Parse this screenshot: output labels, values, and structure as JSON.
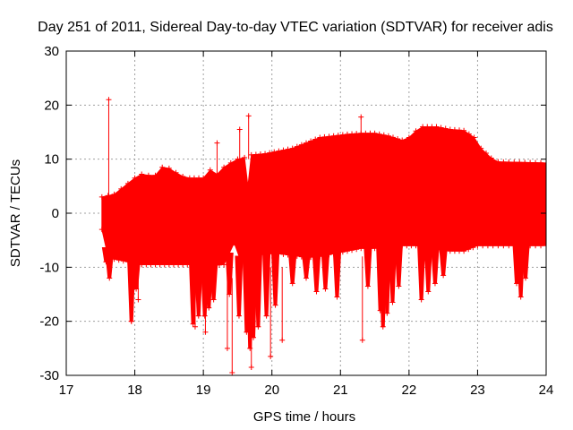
{
  "chart_data": {
    "type": "scatter",
    "title": "Day 251 of 2011, Sidereal Day-to-day VTEC variation (SDTVAR) for receiver adis",
    "xlabel": "GPS time / hours",
    "ylabel": "SDTVAR / TECUs",
    "xlim": [
      17,
      24
    ],
    "ylim": [
      -30,
      30
    ],
    "xticks": [
      "17",
      "18",
      "19",
      "20",
      "21",
      "22",
      "23",
      "24"
    ],
    "yticks": [
      "-30",
      "-20",
      "-10",
      "0",
      "10",
      "20",
      "30"
    ],
    "grid": true,
    "series_color": "#ff0000",
    "series": [
      {
        "name": "SDTVAR",
        "band_upper": [
          [
            17.52,
            3
          ],
          [
            17.7,
            3.5
          ],
          [
            17.8,
            4.5
          ],
          [
            17.9,
            5.5
          ],
          [
            18.0,
            6.5
          ],
          [
            18.1,
            7.2
          ],
          [
            18.2,
            7.0
          ],
          [
            18.3,
            7.0
          ],
          [
            18.4,
            8.5
          ],
          [
            18.5,
            8.3
          ],
          [
            18.6,
            7.5
          ],
          [
            18.7,
            6.8
          ],
          [
            18.8,
            6.5
          ],
          [
            19.0,
            6.5
          ],
          [
            19.1,
            8.0
          ],
          [
            19.2,
            7.2
          ],
          [
            19.3,
            8.5
          ],
          [
            19.4,
            9.3
          ],
          [
            19.5,
            10.0
          ],
          [
            19.6,
            10.3
          ],
          [
            19.65,
            5.0
          ],
          [
            19.7,
            10.8
          ],
          [
            19.9,
            11.0
          ],
          [
            20.1,
            11.5
          ],
          [
            20.3,
            12.0
          ],
          [
            20.5,
            13.0
          ],
          [
            20.7,
            14.0
          ],
          [
            20.9,
            14.3
          ],
          [
            21.1,
            14.6
          ],
          [
            21.3,
            14.8
          ],
          [
            21.5,
            14.8
          ],
          [
            21.7,
            14.3
          ],
          [
            21.9,
            13.5
          ],
          [
            22.0,
            14.0
          ],
          [
            22.1,
            15.2
          ],
          [
            22.2,
            16.0
          ],
          [
            22.4,
            16.0
          ],
          [
            22.6,
            15.5
          ],
          [
            22.8,
            15.3
          ],
          [
            22.95,
            14.0
          ],
          [
            23.05,
            12.0
          ],
          [
            23.2,
            10.2
          ],
          [
            23.3,
            9.5
          ],
          [
            24.0,
            9.3
          ]
        ],
        "band_lower": [
          [
            17.52,
            -3
          ],
          [
            17.6,
            -7.5
          ],
          [
            17.7,
            -8.5
          ],
          [
            17.9,
            -9.0
          ],
          [
            18.1,
            -9.5
          ],
          [
            18.3,
            -9.5
          ],
          [
            18.5,
            -9.5
          ],
          [
            18.7,
            -9.5
          ],
          [
            18.9,
            -9.5
          ],
          [
            19.1,
            -9.7
          ],
          [
            19.3,
            -9.5
          ],
          [
            19.45,
            -5.5
          ],
          [
            19.55,
            -9.0
          ],
          [
            19.7,
            -8.0
          ],
          [
            19.9,
            -7.5
          ],
          [
            20.1,
            -7.5
          ],
          [
            20.3,
            -7.8
          ],
          [
            20.5,
            -8.2
          ],
          [
            20.7,
            -8.0
          ],
          [
            20.9,
            -7.5
          ],
          [
            21.1,
            -7.0
          ],
          [
            21.3,
            -6.5
          ],
          [
            21.5,
            -6.5
          ],
          [
            21.7,
            -6.0
          ],
          [
            21.9,
            -6.0
          ],
          [
            22.1,
            -6.0
          ],
          [
            22.3,
            -6.5
          ],
          [
            22.6,
            -7.0
          ],
          [
            22.8,
            -7.0
          ],
          [
            23.0,
            -6.0
          ],
          [
            23.3,
            -6.0
          ],
          [
            24.0,
            -6.0
          ]
        ],
        "low_dips": [
          [
            17.58,
            -9.0
          ],
          [
            17.63,
            -12.0
          ],
          [
            17.95,
            -20.0
          ],
          [
            18.02,
            -14.0
          ],
          [
            18.85,
            -20.5
          ],
          [
            18.93,
            -19.0
          ],
          [
            19.02,
            -19.0
          ],
          [
            19.08,
            -17.5
          ],
          [
            19.15,
            -16.0
          ],
          [
            19.38,
            -15.0
          ],
          [
            19.52,
            -19.0
          ],
          [
            19.63,
            -22.0
          ],
          [
            19.68,
            -25.0
          ],
          [
            19.73,
            -23.0
          ],
          [
            19.8,
            -21.0
          ],
          [
            19.92,
            -19.0
          ],
          [
            20.05,
            -17.0
          ],
          [
            20.3,
            -13.0
          ],
          [
            20.5,
            -12.0
          ],
          [
            20.65,
            -14.5
          ],
          [
            20.78,
            -14.0
          ],
          [
            20.95,
            -15.5
          ],
          [
            21.4,
            -13.5
          ],
          [
            21.58,
            -18.0
          ],
          [
            21.62,
            -21.0
          ],
          [
            21.68,
            -18.5
          ],
          [
            21.76,
            -16.5
          ],
          [
            21.85,
            -13.5
          ],
          [
            22.18,
            -16.0
          ],
          [
            22.28,
            -14.5
          ],
          [
            22.38,
            -13.0
          ],
          [
            22.5,
            -11.5
          ],
          [
            23.57,
            -13.0
          ],
          [
            23.63,
            -15.5
          ],
          [
            23.7,
            -12.0
          ]
        ],
        "error_bars": [
          [
            17.62,
            0,
            21.0
          ],
          [
            17.95,
            -10,
            -20.0
          ],
          [
            18.05,
            -10,
            -16.0
          ],
          [
            18.88,
            -10,
            -21.0
          ],
          [
            19.03,
            -10,
            -22.0
          ],
          [
            19.2,
            6,
            13.0
          ],
          [
            19.35,
            -12,
            -25.0
          ],
          [
            19.42,
            -12,
            -29.5
          ],
          [
            19.53,
            8,
            15.5
          ],
          [
            19.66,
            10,
            18.0
          ],
          [
            19.7,
            -12,
            -28.5
          ],
          [
            19.98,
            -10,
            -26.5
          ],
          [
            20.15,
            -10,
            -23.5
          ],
          [
            21.3,
            10,
            17.8
          ],
          [
            21.32,
            -8,
            -23.5
          ]
        ]
      }
    ]
  }
}
